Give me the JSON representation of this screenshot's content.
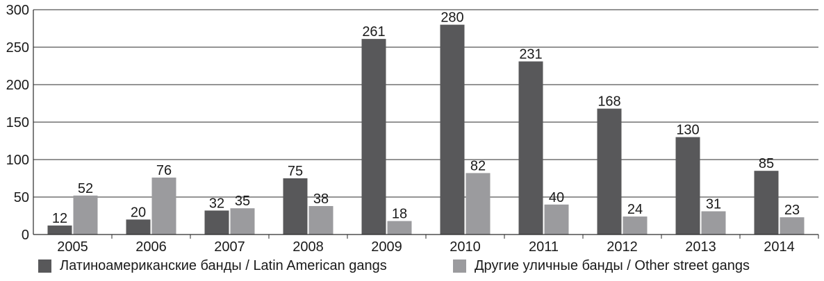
{
  "chart_data": {
    "type": "bar",
    "categories": [
      "2005",
      "2006",
      "2007",
      "2008",
      "2009",
      "2010",
      "2011",
      "2012",
      "2013",
      "2014"
    ],
    "series": [
      {
        "name": "Латиноамериканские банды / Latin American gangs",
        "color": "#58585a",
        "values": [
          12,
          20,
          32,
          75,
          261,
          280,
          231,
          168,
          130,
          85
        ]
      },
      {
        "name": "Другие уличные банды / Other street gangs",
        "color": "#9b9b9e",
        "values": [
          52,
          76,
          35,
          38,
          18,
          82,
          40,
          24,
          31,
          23
        ]
      }
    ],
    "yticks": [
      "0",
      "50",
      "100",
      "150",
      "200",
      "250",
      "300"
    ],
    "ylim": [
      0,
      300
    ],
    "grid": true,
    "legend_position": "bottom"
  }
}
